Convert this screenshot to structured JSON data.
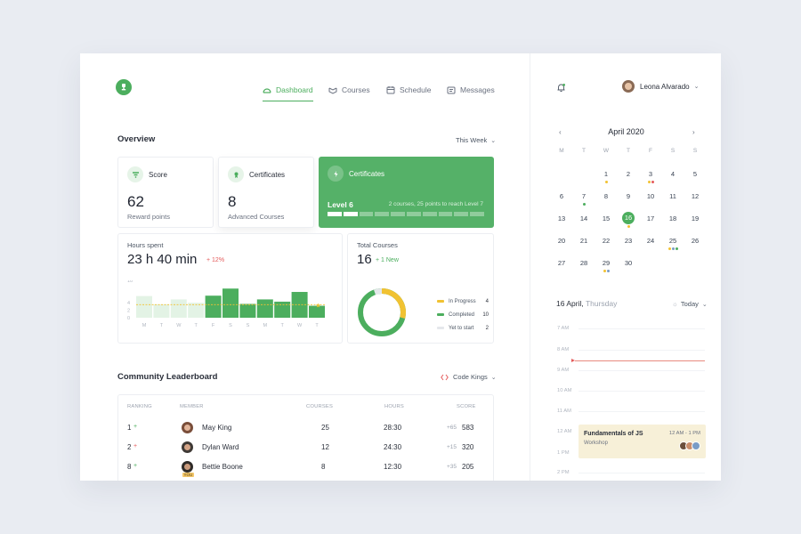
{
  "nav": {
    "items": [
      {
        "label": "Dashboard",
        "icon": "dashboard-icon",
        "active": true
      },
      {
        "label": "Courses",
        "icon": "courses-icon"
      },
      {
        "label": "Schedule",
        "icon": "calendar-icon"
      },
      {
        "label": "Messages",
        "icon": "message-icon"
      }
    ]
  },
  "user": {
    "name": "Leona Alvarado"
  },
  "overview": {
    "title": "Overview",
    "period": "This Week",
    "score": {
      "label": "Score",
      "value": "62",
      "caption": "Reward points"
    },
    "certificates": {
      "label": "Certificates",
      "value": "8",
      "caption": "Advanced Courses"
    },
    "level_card": {
      "label": "Certificates",
      "level": "Level 6",
      "note": "2 courses, 25 points to reach Level 7",
      "progress_segments_filled": 2,
      "progress_segments_total": 10
    }
  },
  "hours": {
    "label": "Hours spent",
    "value": "23 h 40 min",
    "change": "+ 12%",
    "change_color": "#e45b5b"
  },
  "chart_data": {
    "type": "bar",
    "categories": [
      "M",
      "T",
      "W",
      "T",
      "F",
      "S",
      "S",
      "M",
      "T",
      "W",
      "T"
    ],
    "values": [
      5.8,
      3.6,
      4.9,
      4.0,
      5.9,
      7.8,
      3.7,
      4.9,
      4.3,
      6.9,
      3.2
    ],
    "highlighted": [
      false,
      false,
      false,
      false,
      true,
      true,
      true,
      true,
      true,
      true,
      true
    ],
    "yticks": [
      "10",
      "4",
      "2",
      "0"
    ],
    "ylim": [
      0,
      10
    ],
    "average": 3.5,
    "colors": {
      "highlight": "#4cae5e",
      "muted": "#e3f3e5",
      "average": "#f1c232"
    }
  },
  "total_courses": {
    "label": "Total Courses",
    "value": "16",
    "change": "+ 1 New",
    "legend": [
      {
        "label": "In Progress",
        "value": "4",
        "color": "#f1c232"
      },
      {
        "label": "Completed",
        "value": "10",
        "color": "#4cae5e"
      },
      {
        "label": "Yet to start",
        "value": "2",
        "color": "#e5e7eb"
      }
    ]
  },
  "leaderboard": {
    "title": "Community Leaderboard",
    "team": "Code Kings",
    "headers": {
      "ranking": "RANKING",
      "member": "MEMBER",
      "courses": "COURSES",
      "hours": "HOURS",
      "score": "SCORE"
    },
    "rows": [
      {
        "rank": "1",
        "trend": "+",
        "trend_color": "#4cae5e",
        "name": "May King",
        "courses": "25",
        "hours": "28:30",
        "delta": "+65",
        "score": "583"
      },
      {
        "rank": "2",
        "trend": "+",
        "trend_color": "#e45b5b",
        "name": "Dylan Ward",
        "courses": "12",
        "hours": "24:30",
        "delta": "+15",
        "score": "320"
      },
      {
        "rank": "8",
        "trend": "+",
        "trend_color": "#4cae5e",
        "name": "Bettie Boone",
        "courses": "8",
        "hours": "12:30",
        "delta": "+35",
        "score": "205",
        "badge": "YOU"
      }
    ]
  },
  "calendar": {
    "month": "April 2020",
    "weekdays": [
      "M",
      "T",
      "W",
      "T",
      "F",
      "S",
      "S"
    ],
    "weeks": [
      [
        "",
        "",
        "1",
        "2",
        "3",
        "4",
        "5"
      ],
      [
        "6",
        "7",
        "8",
        "9",
        "10",
        "11",
        "12"
      ],
      [
        "13",
        "14",
        "15",
        "16",
        "17",
        "18",
        "19"
      ],
      [
        "20",
        "21",
        "22",
        "23",
        "24",
        "25",
        "26"
      ],
      [
        "27",
        "28",
        "29",
        "30",
        "",
        "",
        ""
      ]
    ],
    "selected": "16"
  },
  "schedule": {
    "date": "16 April,",
    "weekday": "Thursday",
    "view": "Today",
    "times": [
      "7 AM",
      "8 AM",
      "9 AM",
      "10 AM",
      "11 AM",
      "12 AM",
      "1 PM",
      "2 PM"
    ],
    "event": {
      "title": "Fundamentals of JS",
      "time": "12 AM - 1 PM",
      "type": "Workshop"
    }
  }
}
